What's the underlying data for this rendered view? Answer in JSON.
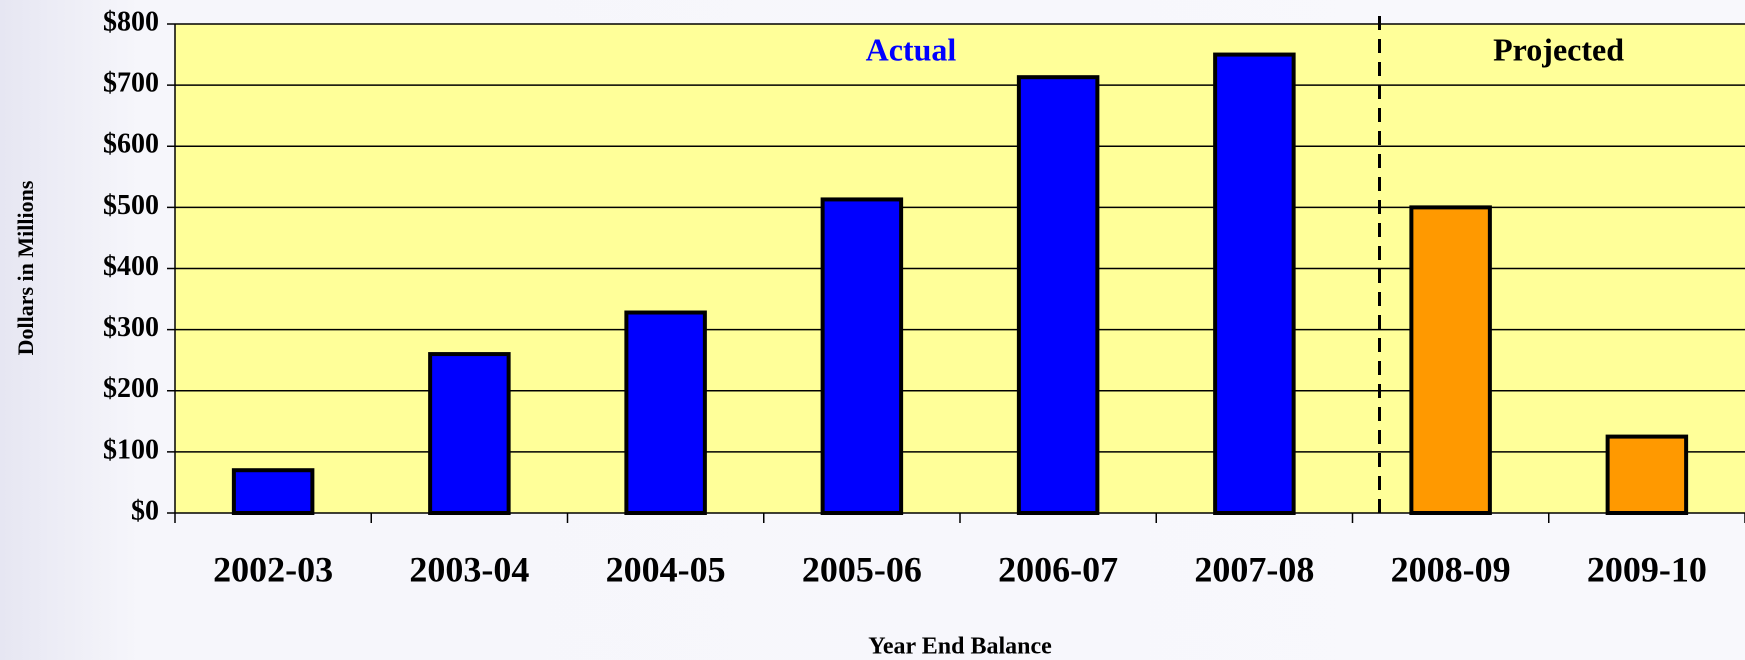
{
  "chart_data": {
    "type": "bar",
    "ylabel": "Dollars in Millions",
    "xlabel": "Year End Balance",
    "categories": [
      "2002-03",
      "2003-04",
      "2004-05",
      "2005-06",
      "2006-07",
      "2007-08",
      "2008-09",
      "2009-10"
    ],
    "values": [
      70,
      260,
      328,
      513,
      713,
      750,
      500,
      125
    ],
    "colors": [
      "#0000ff",
      "#0000ff",
      "#0000ff",
      "#0000ff",
      "#0000ff",
      "#0000ff",
      "#ff9900",
      "#ff9900"
    ],
    "annotations": [
      {
        "text": "Actual",
        "color": "#0000ff"
      },
      {
        "text": "Projected",
        "color": "#000000"
      }
    ],
    "ylim": [
      0,
      800
    ],
    "yticks": [
      {
        "value": 0,
        "label": "$0"
      },
      {
        "value": 100,
        "label": "$100"
      },
      {
        "value": 200,
        "label": "$200"
      },
      {
        "value": 300,
        "label": "$300"
      },
      {
        "value": 400,
        "label": "$400"
      },
      {
        "value": 500,
        "label": "$500"
      },
      {
        "value": 600,
        "label": "$600"
      },
      {
        "value": 700,
        "label": "$700"
      },
      {
        "value": 800,
        "label": "$800"
      }
    ],
    "grid": true,
    "plot_background": "#ffff99"
  }
}
